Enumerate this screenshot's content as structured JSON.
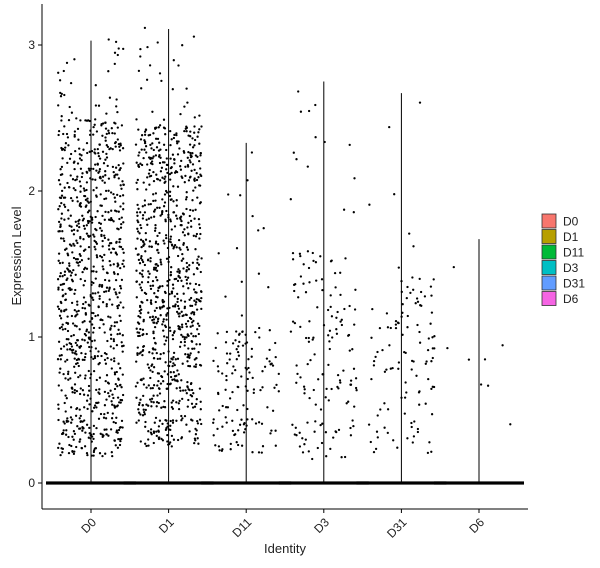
{
  "chart_data": {
    "type": "violin-jitter",
    "xlabel": "Identity",
    "ylabel": "Expression Level",
    "categories": [
      "D0",
      "D1",
      "D11",
      "D3",
      "D31",
      "D6"
    ],
    "ylim": [
      -0.18,
      3.3
    ],
    "yticks": [
      "0",
      "1",
      "2",
      "3"
    ],
    "grid": false,
    "legend_position": "right",
    "legend": [
      {
        "label": "D0",
        "color": "#F8766D"
      },
      {
        "label": "D1",
        "color": "#B79F00"
      },
      {
        "label": "D11",
        "color": "#00BA38"
      },
      {
        "label": "D3",
        "color": "#00BFC4"
      },
      {
        "label": "D31",
        "color": "#619CFF"
      },
      {
        "label": "D6",
        "color": "#F564E3"
      }
    ],
    "groups": [
      {
        "name": "D0",
        "max": 3.03,
        "zero_fraction": 0.62,
        "dense_range": [
          0.18,
          2.5
        ],
        "tail_range": [
          2.5,
          3.05
        ],
        "n_points": 900,
        "n_tail": 30
      },
      {
        "name": "D1",
        "max": 3.11,
        "zero_fraction": 0.6,
        "dense_range": [
          0.25,
          2.45
        ],
        "tail_range": [
          2.45,
          3.12
        ],
        "n_points": 900,
        "n_tail": 25
      },
      {
        "name": "D11",
        "max": 2.33,
        "zero_fraction": 0.9,
        "dense_range": [
          0.2,
          1.1
        ],
        "tail_range": [
          1.1,
          2.35
        ],
        "n_points": 140,
        "n_tail": 14
      },
      {
        "name": "D3",
        "max": 2.75,
        "zero_fraction": 0.88,
        "dense_range": [
          0.15,
          1.6
        ],
        "tail_range": [
          1.6,
          2.76
        ],
        "n_points": 150,
        "n_tail": 14
      },
      {
        "name": "D31",
        "max": 2.67,
        "zero_fraction": 0.9,
        "dense_range": [
          0.2,
          1.4
        ],
        "tail_range": [
          1.4,
          2.68
        ],
        "n_points": 115,
        "n_tail": 8
      },
      {
        "name": "D6",
        "max": 1.67,
        "zero_fraction": 0.97,
        "dense_range": [
          0.25,
          1.7
        ],
        "tail_range": [
          1.2,
          1.7
        ],
        "n_points": 8,
        "n_tail": 0
      }
    ]
  }
}
